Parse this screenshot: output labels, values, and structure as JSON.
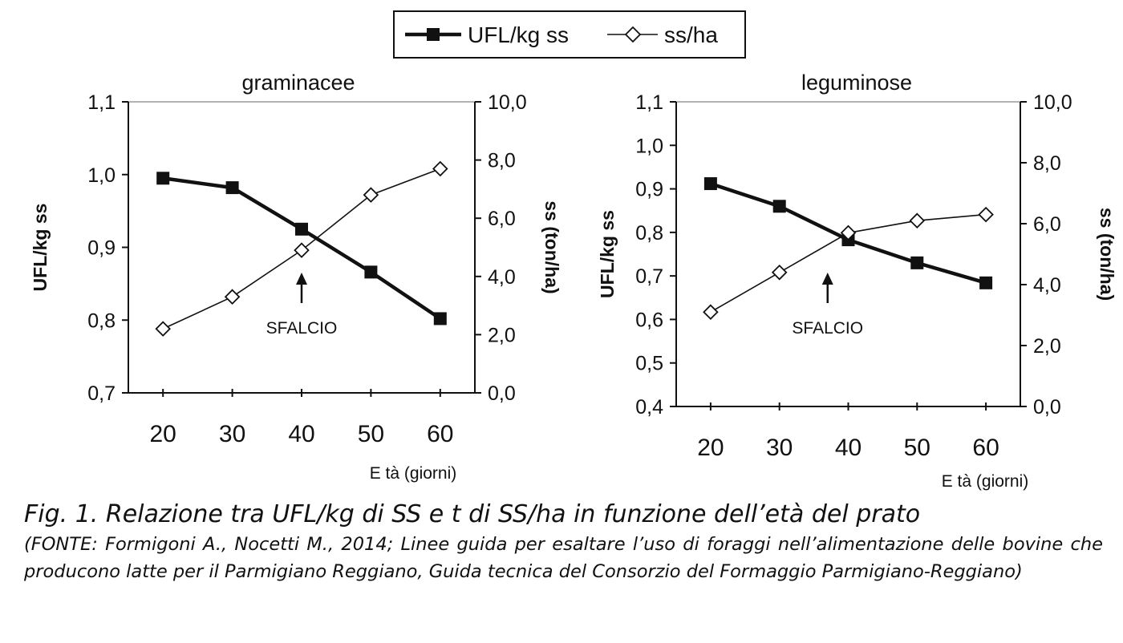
{
  "legend": {
    "entries": [
      {
        "label": "UFL/kg ss",
        "marker": "filled-square",
        "line": "thick"
      },
      {
        "label": "ss/ha",
        "marker": "open-diamond",
        "line": "thin"
      }
    ],
    "placement": "top-center"
  },
  "chart_data": [
    {
      "type": "line",
      "title": "graminacee",
      "xlabel": "E tà (giorni)",
      "ylabel": "UFL/kg ss",
      "y2label": "ss (ton/ha)",
      "x": [
        20,
        30,
        40,
        50,
        60
      ],
      "xlim": [
        15,
        65
      ],
      "ylim": [
        0.7,
        1.1
      ],
      "y2lim": [
        0.0,
        10.0
      ],
      "yticks": [
        "0,7",
        "0,8",
        "0,9",
        "1,0",
        "1,1"
      ],
      "y2ticks": [
        "0,0",
        "2,0",
        "4,0",
        "6,0",
        "8,0",
        "10,0"
      ],
      "series": [
        {
          "name": "UFL/kg ss",
          "axis": "left",
          "values": [
            0.995,
            0.982,
            0.925,
            0.866,
            0.802
          ]
        },
        {
          "name": "ss/ha",
          "axis": "right",
          "values": [
            2.2,
            3.3,
            4.9,
            6.8,
            7.7
          ]
        }
      ],
      "annotation": {
        "label": "SFALCIO",
        "x": 40
      },
      "grid": false
    },
    {
      "type": "line",
      "title": "leguminose",
      "xlabel": "E tà (giorni)",
      "ylabel": "UFL/kg ss",
      "y2label": "ss (ton/ha)",
      "x": [
        20,
        30,
        40,
        50,
        60
      ],
      "xlim": [
        15,
        65
      ],
      "ylim": [
        0.4,
        1.1
      ],
      "y2lim": [
        0.0,
        10.0
      ],
      "yticks": [
        "0,4",
        "0,5",
        "0,6",
        "0,7",
        "0,8",
        "0,9",
        "1,0",
        "1,1"
      ],
      "y2ticks": [
        "0,0",
        "2,0",
        "4,0",
        "6,0",
        "8,0",
        "10,0"
      ],
      "series": [
        {
          "name": "UFL/kg ss",
          "axis": "left",
          "values": [
            0.912,
            0.86,
            0.783,
            0.73,
            0.684
          ]
        },
        {
          "name": "ss/ha",
          "axis": "right",
          "values": [
            3.1,
            4.4,
            5.7,
            6.1,
            6.3
          ]
        }
      ],
      "annotation": {
        "label": "SFALCIO",
        "x": 37
      },
      "grid": false
    }
  ],
  "caption": {
    "main": "Fig. 1. Relazione tra UFL/kg di SS e t di SS/ha in funzione dell’età del prato",
    "source": "(FONTE: Formigoni A., Nocetti M., 2014; Linee guida per esaltare l’uso di foraggi nell’alimentazione delle bovine che producono latte per il Parmigiano Reggiano, Guida tecnica del Consorzio del Formaggio Parmigiano-Reggiano)"
  }
}
